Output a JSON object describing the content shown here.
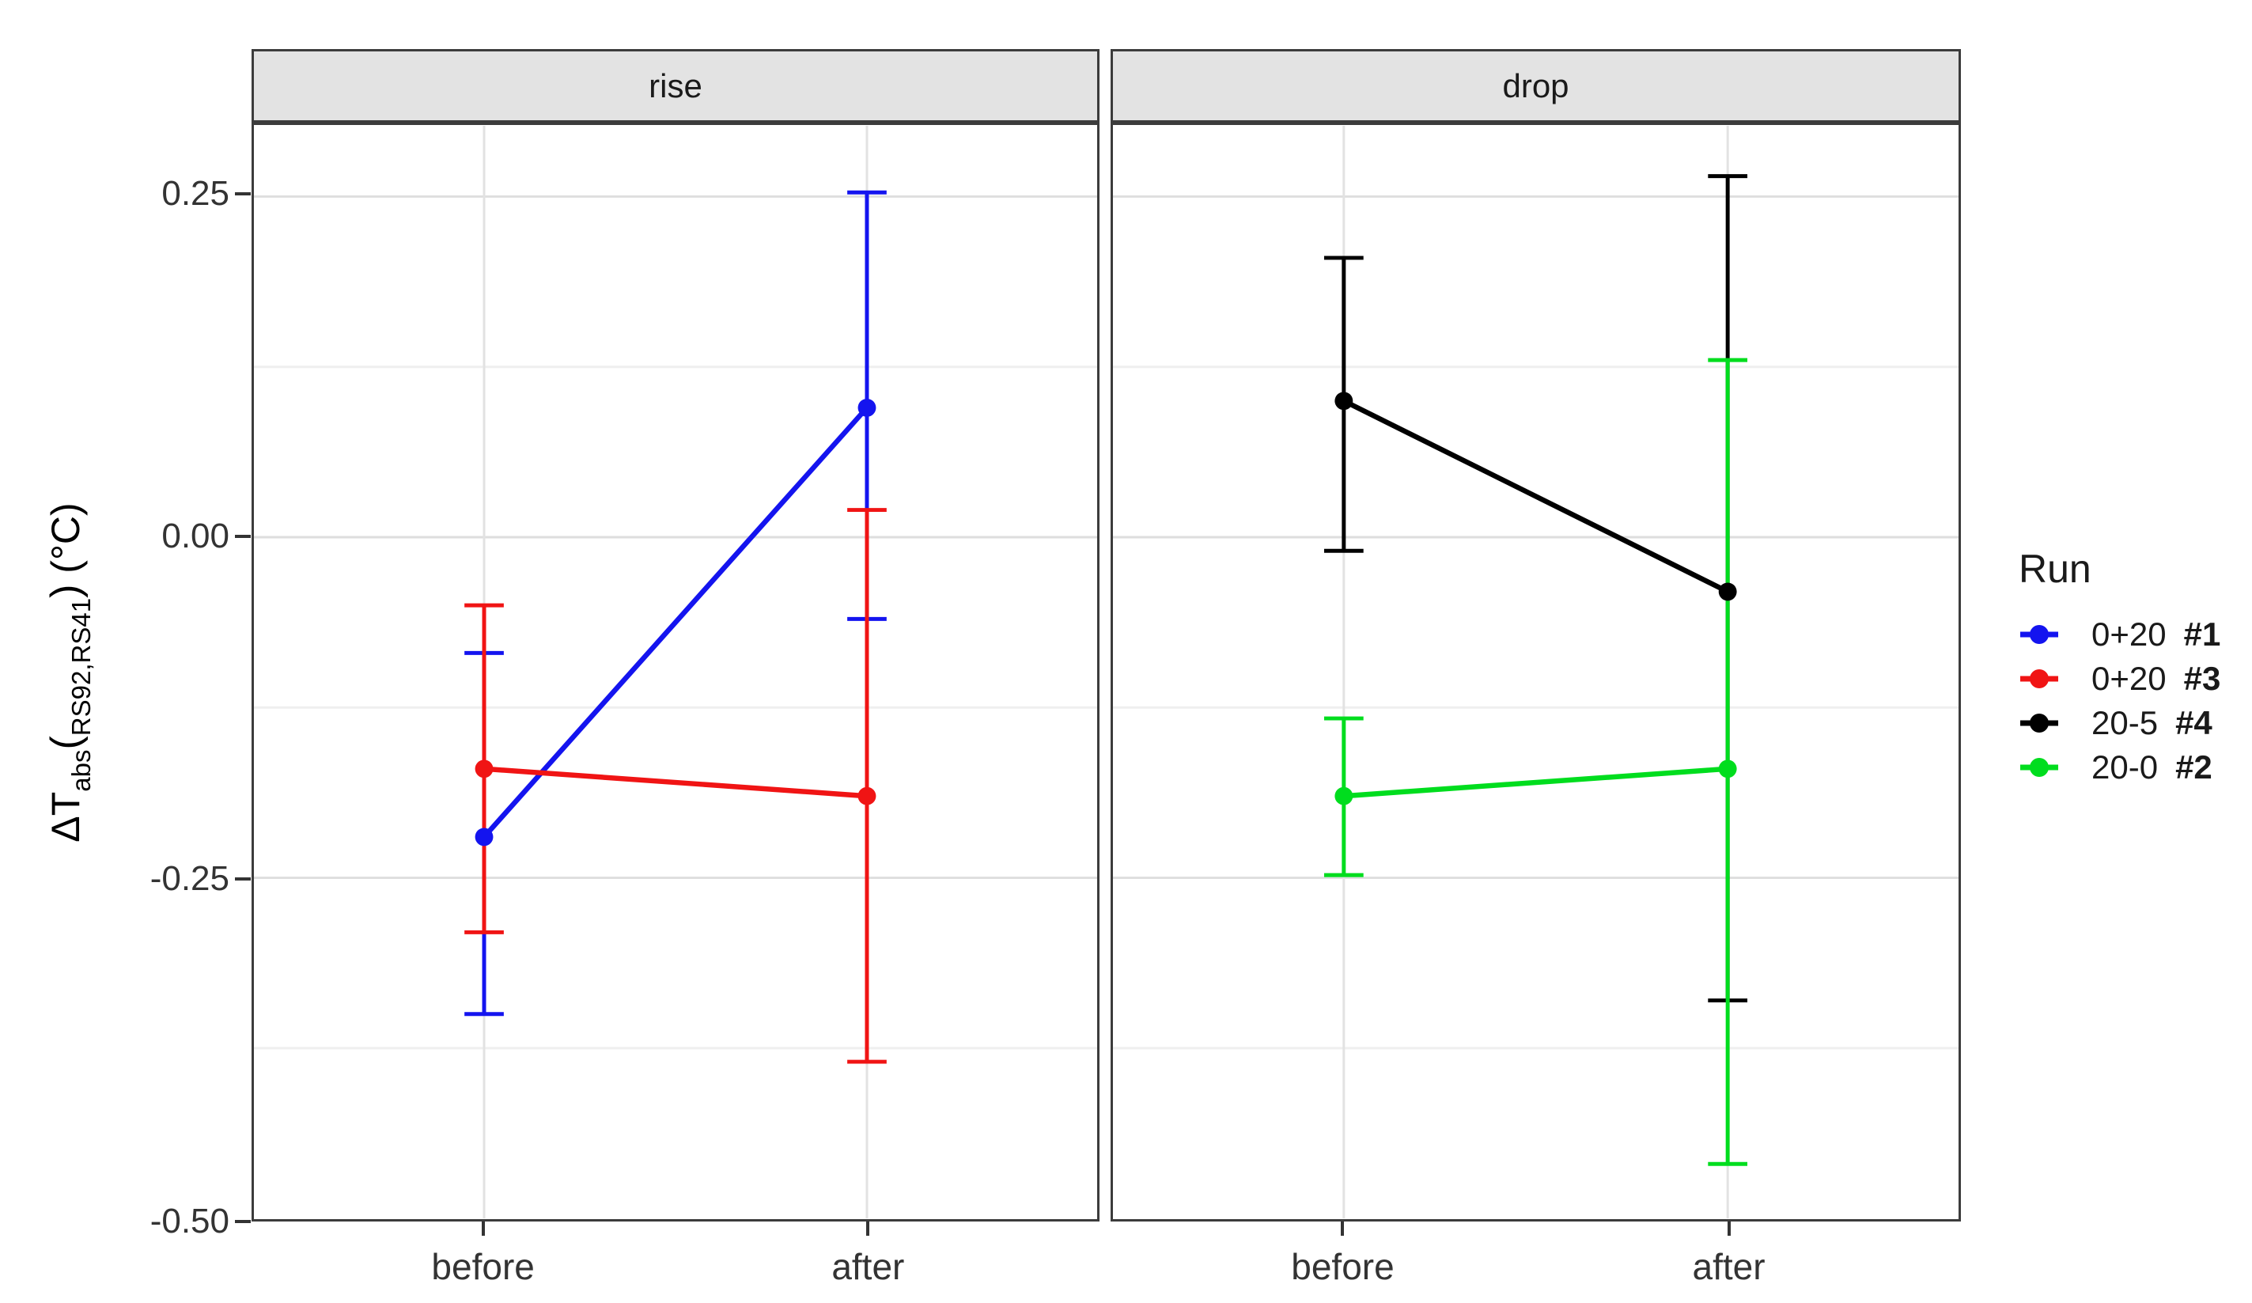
{
  "figure": {
    "bg": "#ffffff"
  },
  "facets": [
    {
      "label": "rise"
    },
    {
      "label": "drop"
    }
  ],
  "x_axis": {
    "categories": [
      "before",
      "after"
    ]
  },
  "y_axis": {
    "tick_labels": [
      "0.25",
      "0.00",
      "-0.25",
      "-0.50"
    ],
    "tick_values": [
      0.25,
      0.0,
      -0.25,
      -0.5
    ],
    "minor_values": [
      0.125,
      -0.125,
      -0.375
    ],
    "title_plain": "ΔT_abs(RS92,RS41) (°C)",
    "title_parts": [
      {
        "text": "ΔT",
        "style": "normal"
      },
      {
        "text": "abs",
        "style": "sub"
      },
      {
        "text": "(",
        "style": "paren"
      },
      {
        "text": "RS92,RS41",
        "style": "sub"
      },
      {
        "text": ")",
        "style": "paren"
      },
      {
        "text": " (°C)",
        "style": "normal"
      }
    ]
  },
  "legend": {
    "title": "Run",
    "entries": [
      {
        "label": "0+20",
        "run_id": "#1",
        "color": "#1414ef"
      },
      {
        "label": "0+20",
        "run_id": "#3",
        "color": "#f01414"
      },
      {
        "label": "20-5",
        "run_id": "#4",
        "color": "#000000"
      },
      {
        "label": "20-0",
        "run_id": "#2",
        "color": "#00dd1e"
      }
    ]
  },
  "style": {
    "panel_border": "#3c3c3c",
    "strip_bg": "#e3e3e3",
    "grid_major": "#dedede",
    "grid_minor": "#efefef",
    "grid_vertical": "#e2e2e2",
    "axis_text": "#333333"
  },
  "chart_data": {
    "type": "line",
    "subtype": "points with errorbars (ggplot pointrange, faceted)",
    "title": "",
    "xlabel": "",
    "ylabel": "ΔT_abs(RS92,RS41) (°C)",
    "x_categories": [
      "before",
      "after"
    ],
    "ylim": [
      -0.5,
      0.302
    ],
    "yticks": [
      0.25,
      0.0,
      -0.25,
      -0.5
    ],
    "grid": "horizontal major+minor, vertical at categories",
    "legend_position": "right",
    "legend_title": "Run",
    "facets": [
      {
        "title": "rise",
        "series": [
          {
            "name": "0+20 #1",
            "color": "#1414ef",
            "points": [
              {
                "x": "before",
                "y": -0.22,
                "ymin": -0.35,
                "ymax": -0.085
              },
              {
                "x": "after",
                "y": 0.095,
                "ymin": -0.06,
                "ymax": 0.253
              }
            ]
          },
          {
            "name": "0+20 #3",
            "color": "#f01414",
            "points": [
              {
                "x": "before",
                "y": -0.17,
                "ymin": -0.29,
                "ymax": -0.05
              },
              {
                "x": "after",
                "y": -0.19,
                "ymin": -0.385,
                "ymax": 0.02
              }
            ]
          }
        ]
      },
      {
        "title": "drop",
        "series": [
          {
            "name": "20-5 #4",
            "color": "#000000",
            "points": [
              {
                "x": "before",
                "y": 0.1,
                "ymin": -0.01,
                "ymax": 0.205
              },
              {
                "x": "after",
                "y": -0.04,
                "ymin": -0.34,
                "ymax": 0.265
              }
            ]
          },
          {
            "name": "20-0 #2",
            "color": "#00dd1e",
            "points": [
              {
                "x": "before",
                "y": -0.19,
                "ymin": -0.248,
                "ymax": -0.133
              },
              {
                "x": "after",
                "y": -0.17,
                "ymin": -0.46,
                "ymax": 0.13
              }
            ]
          }
        ]
      }
    ]
  }
}
